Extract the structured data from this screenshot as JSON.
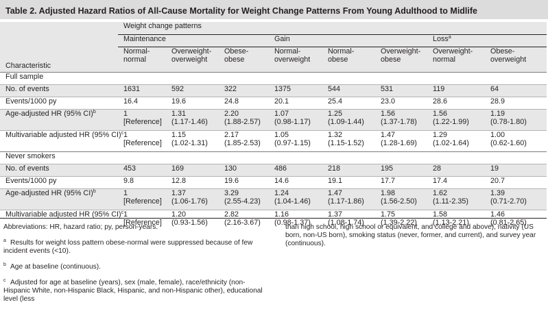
{
  "title": "Table 2. Adjusted Hazard Ratios of All-Cause Mortality for Weight Change Patterns From Young Adulthood to Midlife",
  "header": {
    "weight_change_patterns": "Weight change patterns",
    "groups": {
      "maintenance": "Maintenance",
      "gain": "Gain",
      "loss": "Loss",
      "loss_sup": "a"
    },
    "characteristic": "Characteristic",
    "columns": [
      [
        "Normal-",
        "normal"
      ],
      [
        "Overweight-",
        "overweight"
      ],
      [
        "Obese-",
        "obese"
      ],
      [
        "Normal-",
        "overweight"
      ],
      [
        "Normal-",
        "obese"
      ],
      [
        "Overweight-",
        "obese"
      ],
      [
        "Overweight-",
        "normal"
      ],
      [
        "Obese-",
        "overweight"
      ]
    ]
  },
  "sections": [
    {
      "name": "Full sample",
      "rows": [
        {
          "label": "No. of events",
          "sup": "",
          "values": [
            [
              "1631"
            ],
            [
              "592"
            ],
            [
              "322"
            ],
            [
              "1375"
            ],
            [
              "544"
            ],
            [
              "531"
            ],
            [
              "119"
            ],
            [
              "64"
            ]
          ]
        },
        {
          "label": "Events/1000 py",
          "sup": "",
          "values": [
            [
              "16.4"
            ],
            [
              "19.6"
            ],
            [
              "24.8"
            ],
            [
              "20.1"
            ],
            [
              "25.4"
            ],
            [
              "23.0"
            ],
            [
              "28.6"
            ],
            [
              "28.9"
            ]
          ]
        },
        {
          "label": "Age-adjusted HR (95% CI)",
          "sup": "b",
          "values": [
            [
              "1",
              "[Reference]"
            ],
            [
              "1.31",
              "(1.17-1.46)"
            ],
            [
              "2.20",
              "(1.88-2.57)"
            ],
            [
              "1.07",
              "(0.98-1.17)"
            ],
            [
              "1.25",
              "(1.09-1.44)"
            ],
            [
              "1.56",
              "(1.37-1.78)"
            ],
            [
              "1.56",
              "(1.22-1.99)"
            ],
            [
              "1.19",
              "(0.78-1.80)"
            ]
          ]
        },
        {
          "label": "Multivariable adjusted HR (95% CI)",
          "sup": "c",
          "values": [
            [
              "1",
              "[Reference]"
            ],
            [
              "1.15",
              "(1.02-1.31)"
            ],
            [
              "2.17",
              "(1.85-2.53)"
            ],
            [
              "1.05",
              "(0.97-1.15)"
            ],
            [
              "1.32",
              "(1.15-1.52)"
            ],
            [
              "1.47",
              "(1.28-1.69)"
            ],
            [
              "1.29",
              "(1.02-1.64)"
            ],
            [
              "1.00",
              "(0.62-1.60)"
            ]
          ]
        }
      ]
    },
    {
      "name": "Never smokers",
      "rows": [
        {
          "label": "No. of events",
          "sup": "",
          "values": [
            [
              "453"
            ],
            [
              "169"
            ],
            [
              "130"
            ],
            [
              "486"
            ],
            [
              "218"
            ],
            [
              "195"
            ],
            [
              "28"
            ],
            [
              "19"
            ]
          ]
        },
        {
          "label": "Events/1000 py",
          "sup": "",
          "values": [
            [
              "9.8"
            ],
            [
              "12.8"
            ],
            [
              "19.6"
            ],
            [
              "14.6"
            ],
            [
              "19.1"
            ],
            [
              "17.7"
            ],
            [
              "17.4"
            ],
            [
              "20.7"
            ]
          ]
        },
        {
          "label": "Age-adjusted HR (95% CI)",
          "sup": "b",
          "values": [
            [
              "1",
              "[Reference]"
            ],
            [
              "1.37",
              "(1.06-1.76)"
            ],
            [
              "3.29",
              "(2.55-4.23)"
            ],
            [
              "1.24",
              "(1.04-1.46)"
            ],
            [
              "1.47",
              "(1.17-1.86)"
            ],
            [
              "1.98",
              "(1.56-2.50)"
            ],
            [
              "1.62",
              "(1.11-2.35)"
            ],
            [
              "1.39",
              "(0.71-2.70)"
            ]
          ]
        },
        {
          "label": "Multivariable adjusted HR (95% CI)",
          "sup": "c",
          "values": [
            [
              "1",
              "[Reference]"
            ],
            [
              "1.20",
              "(0.93-1.56)"
            ],
            [
              "2.82",
              "(2.16-3.67)"
            ],
            [
              "1.16",
              "(0.98-1.37)"
            ],
            [
              "1.37",
              "(1.08-1.74)"
            ],
            [
              "1.75",
              "(1.39-2.22)"
            ],
            [
              "1.58",
              "(1.13-2.21)"
            ],
            [
              "1.46",
              "(0.81-2.65)"
            ]
          ]
        }
      ]
    }
  ],
  "footnotes": {
    "abbreviations": "Abbreviations: HR, hazard ratio; py, person-years.",
    "a_marker": "a",
    "a": "Results for weight loss pattern obese-normal were suppressed because of few incident events (<10).",
    "b_marker": "b",
    "b": "Age at baseline (continuous).",
    "c_marker": "c",
    "c_part1": "Adjusted for age at baseline (years), sex (male, female), race/ethnicity (non-Hispanic White, non-Hispanic Black, Hispanic, and non-Hispanic other), educational level (less",
    "c_part2": "than high school, high school or equivalent, and college and above), nativity (US born, non-US born), smoking status (never, former, and current), and survey year (continuous)."
  }
}
